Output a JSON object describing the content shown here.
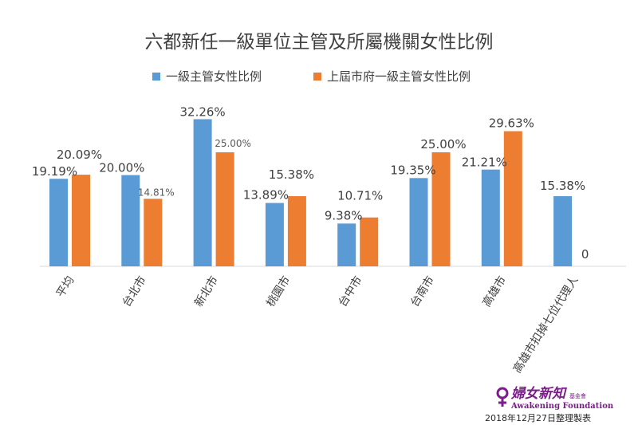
{
  "chart_data": {
    "type": "bar",
    "title": "六都新任一級單位主管及所屬機關女性比例",
    "categories": [
      "平均",
      "台北市",
      "新北市",
      "桃園市",
      "台中市",
      "台南市",
      "高雄市",
      "高雄市扣掉七位代理人"
    ],
    "series": [
      {
        "name": "一級主管女性比例",
        "color": "#5b9bd5",
        "values": [
          19.19,
          20.0,
          32.26,
          13.89,
          9.38,
          19.35,
          21.21,
          15.38
        ],
        "labels": [
          "19.19%",
          "20.00%",
          "32.26%",
          "13.89%",
          "9.38%",
          "19.35%",
          "21.21%",
          "15.38%"
        ]
      },
      {
        "name": "上屆市府一級主管女性比例",
        "color": "#ed7d31",
        "values": [
          20.09,
          14.81,
          25.0,
          15.38,
          10.71,
          25.0,
          29.63,
          0
        ],
        "labels": [
          "20.09%",
          "14.81%",
          "25.00%",
          "15.38%",
          "10.71%",
          "25.00%",
          "29.63%",
          "0"
        ]
      }
    ],
    "ylim": [
      0,
      35
    ],
    "grid": false,
    "legend": "top-center"
  },
  "logo": {
    "name_cn": "婦女新知",
    "name_cn_small": "基金會",
    "name_en": "Awakening Foundation"
  },
  "footnote": "2018年12月27日整理製表"
}
